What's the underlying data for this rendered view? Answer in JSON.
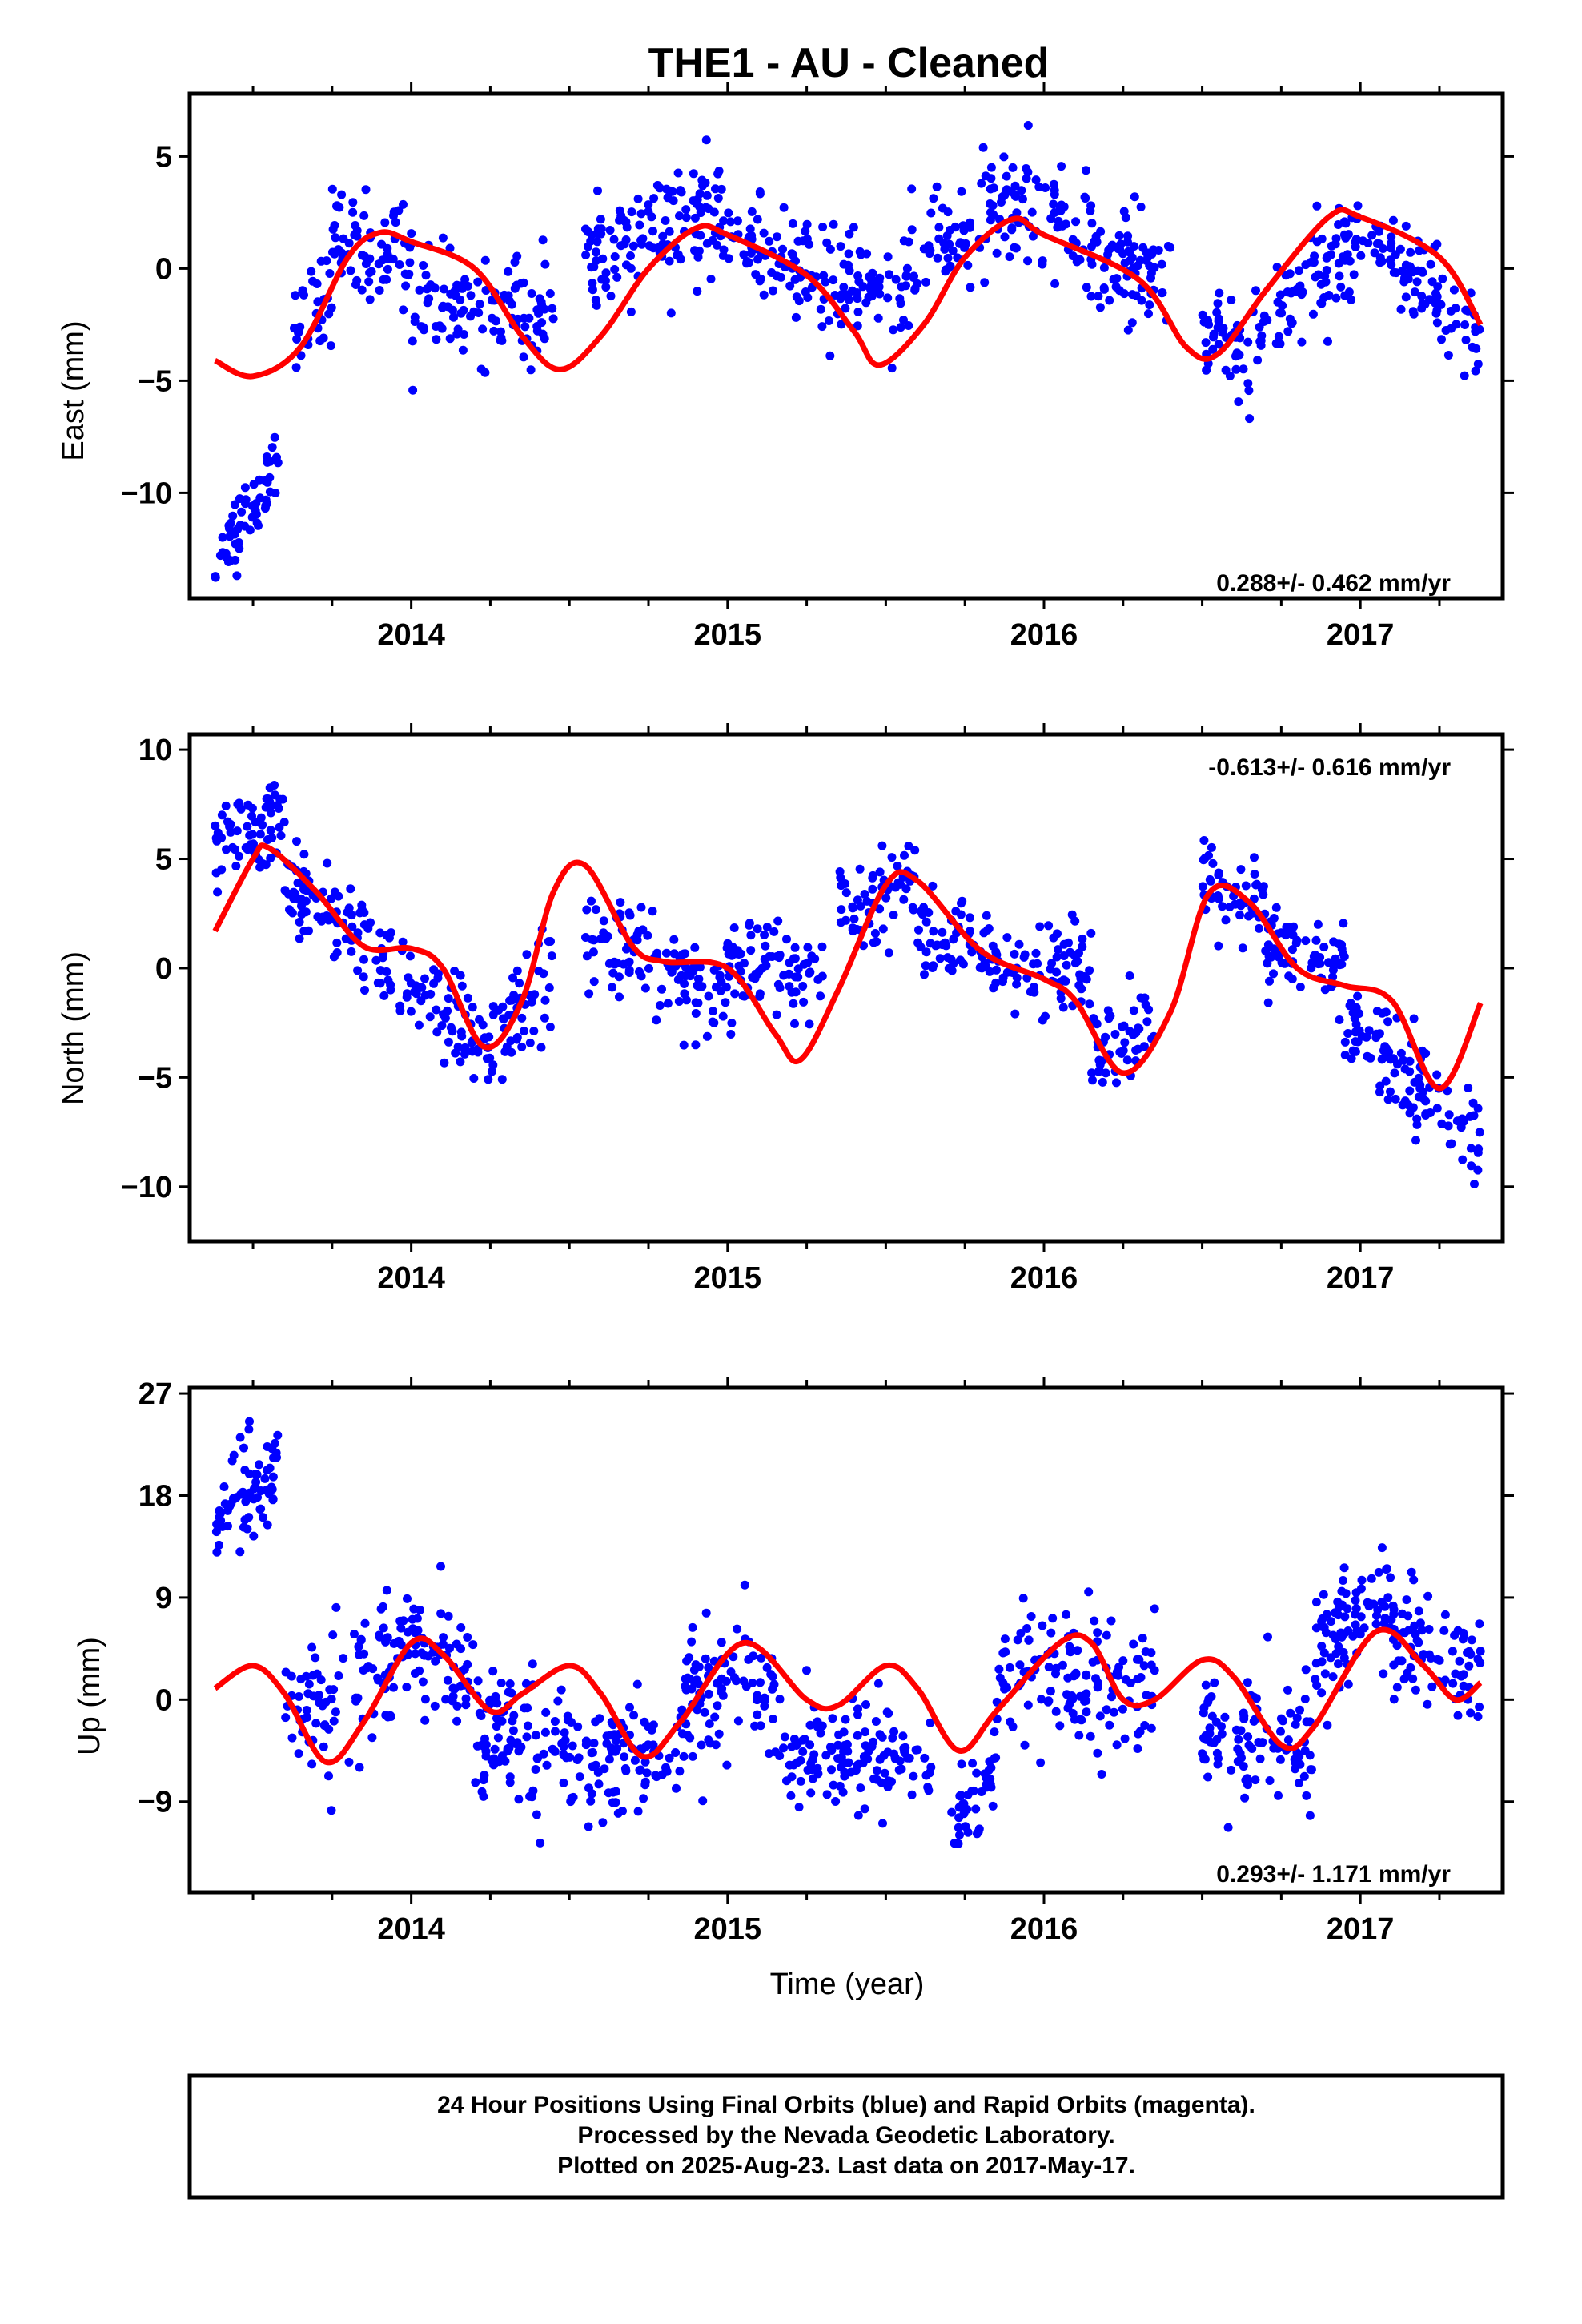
{
  "title": "THE1  - AU - Cleaned",
  "colors": {
    "points": "#0000ff",
    "model": "#ff0000",
    "frame": "#000000"
  },
  "chart_data": [
    {
      "type": "scatter",
      "component": "east",
      "ylabel": "East (mm)",
      "xlabel": "",
      "xlim": [
        2013.3,
        2017.45
      ],
      "ylim": [
        -14.7,
        7.8
      ],
      "yticks": [
        5,
        0,
        -5,
        -10
      ],
      "ytick_labels": [
        "5",
        "0",
        "−10"
      ],
      "ytick_label_values": [
        5,
        0,
        -10
      ],
      "ytick_labels_all": [
        "5",
        "0",
        "−5",
        "−10"
      ],
      "xticks": [
        2014,
        2015,
        2016,
        2017
      ],
      "xtick_labels": [
        "2014",
        "2015",
        "2016",
        "2017"
      ],
      "rate": "0.288+/- 0.462 mm/yr",
      "rate_position": "bottom-right",
      "series": [
        {
          "kind": "points",
          "segments": [
            {
              "x0": 2013.38,
              "x1": 2013.58,
              "y0": -13.5,
              "y1": -8.3,
              "spread": 1.1,
              "n": 60
            },
            {
              "x0": 2013.6,
              "x1": 2013.75,
              "y0": -3.5,
              "y1": -1.0,
              "spread": 1.4,
              "n": 30
            },
            {
              "x0": 2013.75,
              "x1": 2014.0,
              "y0": 1.0,
              "y1": 0.8,
              "spread": 1.6,
              "n": 70
            },
            {
              "x0": 2014.0,
              "x1": 2014.45,
              "y0": -1.5,
              "y1": -2.0,
              "spread": 1.5,
              "n": 110
            },
            {
              "x0": 2014.55,
              "x1": 2015.0,
              "y0": 0.5,
              "y1": 2.5,
              "spread": 1.7,
              "n": 130
            },
            {
              "x0": 2015.0,
              "x1": 2015.55,
              "y0": 1.0,
              "y1": -1.5,
              "spread": 1.6,
              "n": 140
            },
            {
              "x0": 2015.55,
              "x1": 2015.85,
              "y0": -0.5,
              "y1": 3.0,
              "spread": 1.6,
              "n": 70
            },
            {
              "x0": 2015.85,
              "x1": 2016.4,
              "y0": 3.0,
              "y1": -0.5,
              "spread": 1.7,
              "n": 150
            },
            {
              "x0": 2016.5,
              "x1": 2016.65,
              "y0": -2.5,
              "y1": -4.5,
              "spread": 1.4,
              "n": 40
            },
            {
              "x0": 2016.65,
              "x1": 2017.0,
              "y0": -3.0,
              "y1": 1.5,
              "spread": 1.6,
              "n": 90
            },
            {
              "x0": 2017.0,
              "x1": 2017.38,
              "y0": 1.5,
              "y1": -2.8,
              "spread": 1.3,
              "n": 90
            }
          ]
        },
        {
          "kind": "model",
          "x": [
            2013.38,
            2013.5,
            2013.65,
            2013.8,
            2013.9,
            2014.0,
            2014.2,
            2014.35,
            2014.47,
            2014.6,
            2014.75,
            2014.9,
            2015.0,
            2015.25,
            2015.4,
            2015.48,
            2015.62,
            2015.75,
            2015.9,
            2016.0,
            2016.3,
            2016.45,
            2016.55,
            2016.7,
            2016.9,
            2017.0,
            2017.25,
            2017.38
          ],
          "y": [
            -4.1,
            -4.8,
            -3.5,
            0.5,
            1.6,
            1.2,
            0.0,
            -3.0,
            -4.5,
            -3.0,
            0.0,
            1.8,
            1.5,
            -0.3,
            -2.8,
            -4.3,
            -2.5,
            0.5,
            2.2,
            1.5,
            -0.5,
            -3.5,
            -3.8,
            -1.0,
            2.3,
            2.3,
            0.5,
            -2.5
          ]
        }
      ]
    },
    {
      "type": "scatter",
      "component": "north",
      "ylabel": "North (mm)",
      "xlabel": "",
      "xlim": [
        2013.3,
        2017.45
      ],
      "ylim": [
        -12.5,
        10.7
      ],
      "yticks": [
        10,
        5,
        0,
        -5,
        -10
      ],
      "ytick_labels": [
        "10",
        "5",
        "0",
        "−5",
        "−10"
      ],
      "xticks": [
        2014,
        2015,
        2016,
        2017
      ],
      "xtick_labels": [
        "2014",
        "2015",
        "2016",
        "2017"
      ],
      "rate": "-0.613+/- 0.616 mm/yr",
      "rate_position": "top-right",
      "series": [
        {
          "kind": "points",
          "segments": [
            {
              "x0": 2013.38,
              "x1": 2013.6,
              "y0": 5.5,
              "y1": 6.5,
              "spread": 1.5,
              "n": 70
            },
            {
              "x0": 2013.6,
              "x1": 2013.95,
              "y0": 4.0,
              "y1": 0.0,
              "spread": 1.4,
              "n": 90
            },
            {
              "x0": 2013.95,
              "x1": 2014.25,
              "y0": -0.5,
              "y1": -4.0,
              "spread": 1.5,
              "n": 70
            },
            {
              "x0": 2014.25,
              "x1": 2014.45,
              "y0": -3.5,
              "y1": 0.0,
              "spread": 1.5,
              "n": 50
            },
            {
              "x0": 2014.55,
              "x1": 2015.0,
              "y0": 1.5,
              "y1": -1.5,
              "spread": 1.5,
              "n": 110
            },
            {
              "x0": 2015.0,
              "x1": 2015.3,
              "y0": 0.5,
              "y1": -0.5,
              "spread": 1.4,
              "n": 80
            },
            {
              "x0": 2015.35,
              "x1": 2015.6,
              "y0": 2.5,
              "y1": 4.5,
              "spread": 1.4,
              "n": 60
            },
            {
              "x0": 2015.6,
              "x1": 2016.15,
              "y0": 1.5,
              "y1": -0.5,
              "spread": 1.4,
              "n": 130
            },
            {
              "x0": 2016.15,
              "x1": 2016.35,
              "y0": -3.5,
              "y1": -3.0,
              "spread": 1.4,
              "n": 50
            },
            {
              "x0": 2016.5,
              "x1": 2016.7,
              "y0": 4.0,
              "y1": 2.5,
              "spread": 1.4,
              "n": 50
            },
            {
              "x0": 2016.7,
              "x1": 2016.95,
              "y0": 1.0,
              "y1": 0.0,
              "spread": 1.4,
              "n": 70
            },
            {
              "x0": 2016.95,
              "x1": 2017.38,
              "y0": -2.5,
              "y1": -8.0,
              "spread": 1.6,
              "n": 110
            }
          ]
        },
        {
          "kind": "model",
          "x": [
            2013.38,
            2013.5,
            2013.55,
            2013.7,
            2013.85,
            2014.0,
            2014.1,
            2014.23,
            2014.35,
            2014.45,
            2014.55,
            2014.7,
            2014.8,
            2015.0,
            2015.15,
            2015.23,
            2015.35,
            2015.5,
            2015.6,
            2015.8,
            2016.0,
            2016.1,
            2016.25,
            2016.4,
            2016.52,
            2016.65,
            2016.8,
            2016.95,
            2017.1,
            2017.25,
            2017.38
          ],
          "y": [
            1.7,
            5.0,
            5.5,
            3.5,
            1.0,
            0.9,
            0.0,
            -3.6,
            -1.5,
            3.5,
            4.7,
            1.0,
            0.3,
            0.0,
            -3.0,
            -4.2,
            -1.0,
            3.8,
            4.0,
            0.8,
            -0.5,
            -1.5,
            -4.8,
            -2.0,
            3.4,
            3.0,
            0.0,
            -0.8,
            -1.5,
            -5.5,
            -1.6
          ]
        }
      ]
    },
    {
      "type": "scatter",
      "component": "up",
      "ylabel": "Up (mm)",
      "xlabel": "Time (year)",
      "xlim": [
        2013.3,
        2017.45
      ],
      "ylim": [
        -17.0,
        27.5
      ],
      "yticks": [
        27,
        18,
        9,
        0,
        -9
      ],
      "ytick_labels": [
        "27",
        "18",
        "9",
        "0",
        "−9"
      ],
      "xticks": [
        2014,
        2015,
        2016,
        2017
      ],
      "xtick_labels": [
        "2014",
        "2015",
        "2016",
        "2017"
      ],
      "rate": "0.293+/- 1.171 mm/yr",
      "rate_position": "bottom-right",
      "series": [
        {
          "kind": "points",
          "segments": [
            {
              "x0": 2013.38,
              "x1": 2013.58,
              "y0": 16.0,
              "y1": 20.0,
              "spread": 3.5,
              "n": 70
            },
            {
              "x0": 2013.6,
              "x1": 2013.95,
              "y0": -2.0,
              "y1": 2.0,
              "spread": 4.2,
              "n": 90
            },
            {
              "x0": 2013.95,
              "x1": 2014.2,
              "y0": 5.0,
              "y1": 2.0,
              "spread": 3.6,
              "n": 70
            },
            {
              "x0": 2014.2,
              "x1": 2014.5,
              "y0": -3.0,
              "y1": -4.0,
              "spread": 3.6,
              "n": 90
            },
            {
              "x0": 2014.5,
              "x1": 2014.85,
              "y0": -4.0,
              "y1": -6.0,
              "spread": 3.5,
              "n": 90
            },
            {
              "x0": 2014.85,
              "x1": 2015.15,
              "y0": 0.0,
              "y1": 3.0,
              "spread": 3.8,
              "n": 90
            },
            {
              "x0": 2015.15,
              "x1": 2015.65,
              "y0": -4.5,
              "y1": -5.0,
              "spread": 3.5,
              "n": 130
            },
            {
              "x0": 2015.7,
              "x1": 2015.85,
              "y0": -12.0,
              "y1": -6.0,
              "spread": 3.0,
              "n": 40
            },
            {
              "x0": 2015.85,
              "x1": 2016.35,
              "y0": 2.0,
              "y1": 2.0,
              "spread": 3.8,
              "n": 130
            },
            {
              "x0": 2016.5,
              "x1": 2016.85,
              "y0": -3.5,
              "y1": -4.5,
              "spread": 3.6,
              "n": 100
            },
            {
              "x0": 2016.85,
              "x1": 2017.1,
              "y0": 4.0,
              "y1": 9.0,
              "spread": 3.8,
              "n": 80
            },
            {
              "x0": 2017.1,
              "x1": 2017.38,
              "y0": 6.0,
              "y1": 2.0,
              "spread": 3.6,
              "n": 80
            }
          ]
        },
        {
          "kind": "model",
          "x": [
            2013.38,
            2013.5,
            2013.6,
            2013.73,
            2013.85,
            2014.0,
            2014.1,
            2014.25,
            2014.35,
            2014.5,
            2014.6,
            2014.73,
            2014.85,
            2015.05,
            2015.25,
            2015.35,
            2015.5,
            2015.6,
            2015.73,
            2015.85,
            2016.05,
            2016.15,
            2016.25,
            2016.35,
            2016.5,
            2016.6,
            2016.75,
            2016.85,
            2017.05,
            2017.2,
            2017.3,
            2017.38
          ],
          "y": [
            1.0,
            3.0,
            0.5,
            -5.5,
            -2.0,
            5.0,
            4.0,
            -1.0,
            0.5,
            3.0,
            0.5,
            -5.0,
            -2.0,
            5.0,
            0.0,
            -0.5,
            3.0,
            1.0,
            -4.5,
            -1.0,
            5.0,
            5.0,
            0.0,
            0.0,
            3.5,
            2.0,
            -4.0,
            -2.5,
            6.0,
            3.0,
            0.0,
            1.5
          ]
        }
      ]
    }
  ],
  "footer": {
    "line1": "24 Hour Positions Using Final Orbits (blue) and Rapid Orbits (magenta).",
    "line2": "Processed by the Nevada Geodetic Laboratory.",
    "line3": "Plotted on 2025-Aug-23. Last data on 2017-May-17."
  }
}
